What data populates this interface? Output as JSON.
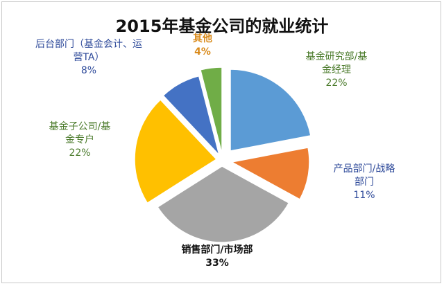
{
  "chart_data": {
    "type": "pie",
    "title": "2015年基金公司的就业统计",
    "slices": [
      {
        "label_lines": [
          "基金研究部/基",
          "金经理"
        ],
        "percent_label": "22%",
        "value": 22,
        "color": "#5b9bd5",
        "label_color": "#4a7a2a",
        "bold": false
      },
      {
        "label_lines": [
          "产品部门/战略",
          "部门"
        ],
        "percent_label": "11%",
        "value": 11,
        "color": "#ed7d31",
        "label_color": "#2e4a9a",
        "bold": false
      },
      {
        "label_lines": [
          "销售部门/市场部"
        ],
        "percent_label": "33%",
        "value": 33,
        "color": "#a5a5a5",
        "label_color": "#111111",
        "bold": true
      },
      {
        "label_lines": [
          "基金子公司/基",
          "金专户"
        ],
        "percent_label": "22%",
        "value": 22,
        "color": "#ffc000",
        "label_color": "#4a7a2a",
        "bold": false
      },
      {
        "label_lines": [
          "后台部门（基金会计、运",
          "营TA）"
        ],
        "percent_label": "8%",
        "value": 8,
        "color": "#4472c4",
        "label_color": "#2e4a9a",
        "bold": false
      },
      {
        "label_lines": [
          "其他"
        ],
        "percent_label": "4%",
        "value": 4,
        "color": "#70ad47",
        "label_color": "#d98a1a",
        "bold": true
      }
    ]
  }
}
